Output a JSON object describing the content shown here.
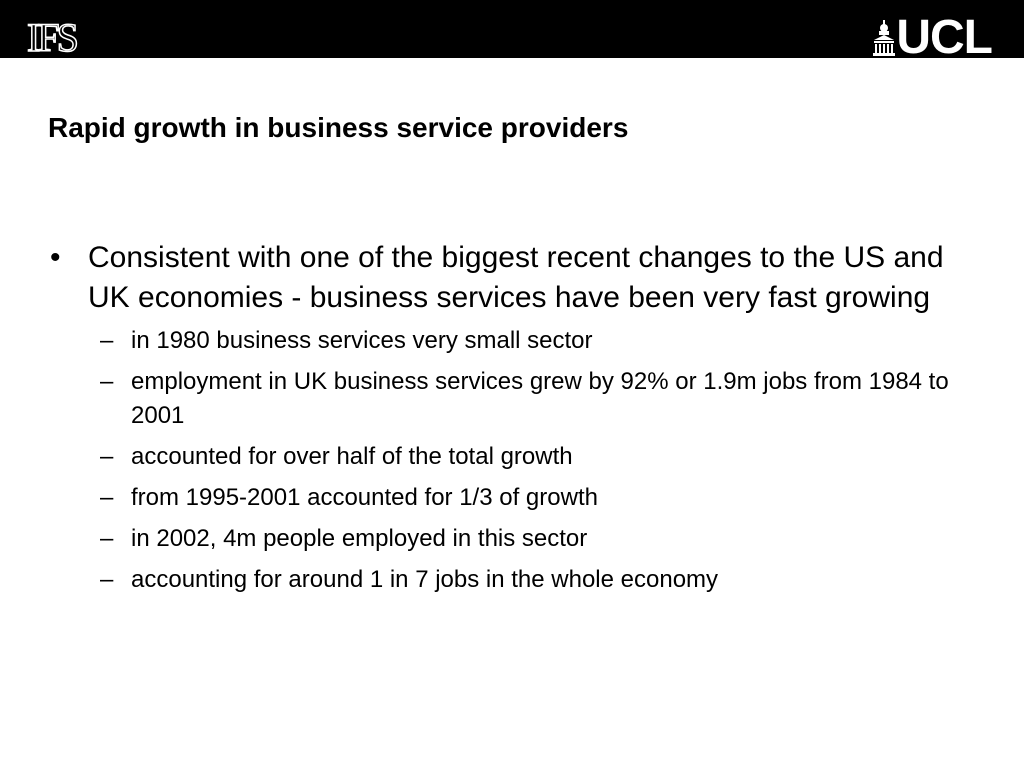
{
  "header": {
    "left_logo_text": "IFS",
    "right_logo_text": "UCL",
    "right_logo_icon": "portico-icon"
  },
  "slide": {
    "title": "Rapid growth in business service providers",
    "bullet": {
      "marker": "•",
      "text": "Consistent with one of the biggest recent changes to the US and UK economies - business services have been very fast growing"
    },
    "sub_marker": "–",
    "sub_bullets": [
      "in 1980 business services very small sector",
      "employment in UK business services grew by 92% or 1.9m jobs from 1984 to 2001",
      "accounted for over half of the total growth",
      "from 1995-2001 accounted for 1/3 of growth",
      "in 2002, 4m people employed in this sector",
      "accounting for around 1 in 7 jobs in the whole economy"
    ]
  },
  "colors": {
    "header_background": "#000000",
    "background": "#ffffff",
    "text": "#000000",
    "logo": "#ffffff"
  }
}
